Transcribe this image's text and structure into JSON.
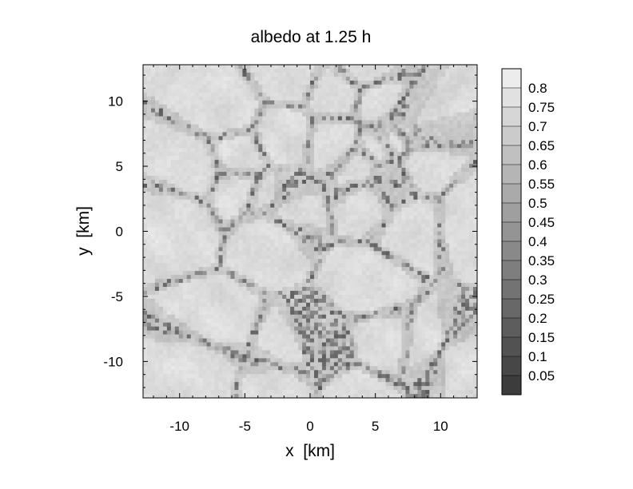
{
  "chart_data": {
    "type": "heatmap",
    "title": "albedo at 1.25 h",
    "xlabel": "x  [km]",
    "ylabel": "y  [km]",
    "xlim": [
      -12.8,
      12.8
    ],
    "ylim": [
      -12.8,
      12.8
    ],
    "x_ticks": [
      -10,
      -5,
      0,
      5,
      10
    ],
    "y_ticks": [
      -10,
      -5,
      0,
      5,
      10
    ],
    "x_tick_labels": [
      "-10",
      "-5",
      "0",
      "5",
      "10"
    ],
    "y_tick_labels": [
      "-10",
      "-5",
      "0",
      "5",
      "10"
    ],
    "colorbar": {
      "levels": [
        0.05,
        0.1,
        0.15,
        0.2,
        0.25,
        0.3,
        0.35,
        0.4,
        0.45,
        0.5,
        0.55,
        0.6,
        0.65,
        0.7,
        0.75,
        0.8
      ],
      "labels": [
        "0.05",
        "0.1",
        "0.15",
        "0.2",
        "0.25",
        "0.3",
        "0.35",
        "0.4",
        "0.45",
        "0.5",
        "0.55",
        "0.6",
        "0.65",
        "0.7",
        "0.75",
        "0.8"
      ],
      "colors": [
        "#3c3c3c",
        "#474747",
        "#525252",
        "#5d5d5d",
        "#686868",
        "#737373",
        "#7e7e7e",
        "#898989",
        "#949494",
        "#9f9f9f",
        "#aaaaaa",
        "#b5b5b5",
        "#c0c0c0",
        "#cbcbcb",
        "#d6d6d6",
        "#e1e1e1",
        "#ececec"
      ]
    },
    "colormap": "grayscale",
    "field_description": "Cellular cloud-field albedo pattern: mostly 0.7-0.8 (light gray) with dark filaments down to ~0.05 along cell boundaries"
  }
}
